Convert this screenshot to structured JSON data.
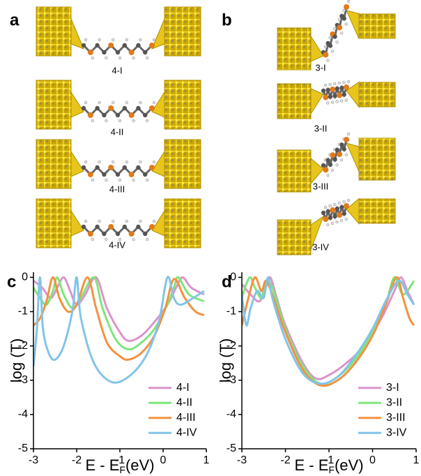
{
  "structures": [
    {
      "panel_label": "a",
      "labels": [
        "4-I",
        "4-II",
        "4-III",
        "4-IV"
      ]
    },
    {
      "panel_label": "b",
      "labels": [
        "3-I",
        "3-II",
        "3-III",
        "3-IV"
      ]
    }
  ],
  "chart_data": [
    {
      "type": "line",
      "panel_label": "c",
      "ylabel": "log (T)",
      "xlabel": {
        "main": "E - E",
        "sub": "F",
        "unit": "(eV)"
      },
      "xlim": [
        -3,
        1
      ],
      "ylim": [
        -5,
        0.15
      ],
      "xticks": [
        -3,
        -2,
        -1,
        0,
        1
      ],
      "yticks": [
        -5,
        -4,
        -3,
        -2,
        -1,
        0
      ],
      "legend": "lower right",
      "series": [
        {
          "name": "4-I",
          "color": "#dc93cc",
          "x": [
            -3,
            -2.8,
            -2.6,
            -2.45,
            -2.3,
            -2.15,
            -2.0,
            -1.8,
            -1.55,
            -1.3,
            -1.0,
            -0.8,
            -0.5,
            -0.2,
            0.1,
            0.3,
            0.45,
            0.65,
            0.95
          ],
          "values": [
            -0.1,
            -0.3,
            -0.6,
            -0.3,
            0,
            -0.4,
            -0.8,
            -0.5,
            0,
            -0.9,
            -1.6,
            -1.85,
            -1.7,
            -1.3,
            -0.8,
            -0.3,
            0,
            -0.3,
            -0.5
          ]
        },
        {
          "name": "4-II",
          "color": "#7ee67b",
          "x": [
            -3,
            -2.85,
            -2.7,
            -2.55,
            -2.45,
            -2.3,
            -2.1,
            -1.9,
            -1.6,
            -1.4,
            -1.1,
            -0.8,
            -0.5,
            -0.2,
            0.1,
            0.25,
            0.35,
            0.6,
            0.95
          ],
          "values": [
            -0.3,
            -0.6,
            -0.8,
            -0.4,
            0,
            -0.5,
            -0.9,
            -0.6,
            0,
            -0.9,
            -1.8,
            -2.1,
            -1.9,
            -1.5,
            -0.8,
            -0.3,
            0,
            -0.5,
            -0.7
          ]
        },
        {
          "name": "4-III",
          "color": "#f4913f",
          "x": [
            -3,
            -2.85,
            -2.7,
            -2.55,
            -2.4,
            -2.2,
            -2.0,
            -1.75,
            -1.55,
            -1.3,
            -1.0,
            -0.8,
            -0.5,
            -0.2,
            0.05,
            0.25,
            0.5,
            0.75,
            0.95
          ],
          "values": [
            -1.4,
            -1.2,
            -0.7,
            0,
            -0.6,
            -1.0,
            -0.8,
            0,
            -0.9,
            -1.9,
            -2.3,
            -2.4,
            -2.2,
            -1.7,
            -0.9,
            -0.05,
            -0.6,
            -1.0,
            -1.1
          ]
        },
        {
          "name": "4-IV",
          "color": "#82c4e8",
          "x": [
            -3,
            -2.92,
            -2.85,
            -2.78,
            -2.65,
            -2.5,
            -2.3,
            -2.1,
            -2.0,
            -1.9,
            -1.6,
            -1.2,
            -0.8,
            -0.4,
            -0.1,
            0.1,
            0.25,
            0.4,
            0.7,
            0.95
          ],
          "values": [
            -2.6,
            -1.5,
            0,
            -1.5,
            -2.2,
            -2.4,
            -2.0,
            -1.0,
            0,
            -1.2,
            -2.5,
            -3.05,
            -2.9,
            -2.3,
            -1.3,
            0,
            -0.6,
            -0.8,
            -0.6,
            -0.4
          ]
        }
      ]
    },
    {
      "type": "line",
      "panel_label": "d",
      "ylabel": "log (T)",
      "xlabel": {
        "main": "E - E",
        "sub": "F",
        "unit": "(eV)"
      },
      "xlim": [
        -3,
        1
      ],
      "ylim": [
        -5,
        0.15
      ],
      "xticks": [
        -3,
        -2,
        -1,
        0,
        1
      ],
      "yticks": [
        -5,
        -4,
        -3,
        -2,
        -1,
        0
      ],
      "legend": "lower right",
      "series": [
        {
          "name": "3-I",
          "color": "#dc93cc",
          "x": [
            -3,
            -2.8,
            -2.6,
            -2.45,
            -2.35,
            -2.2,
            -2.0,
            -1.6,
            -1.3,
            -1.0,
            -0.6,
            -0.2,
            0.2,
            0.5,
            0.65,
            0.8,
            0.95
          ],
          "values": [
            -0.2,
            -0.5,
            -0.7,
            -0.3,
            0,
            -0.6,
            -1.4,
            -2.5,
            -2.95,
            -2.85,
            -2.5,
            -2.0,
            -1.2,
            -0.4,
            0,
            -0.4,
            -0.8
          ]
        },
        {
          "name": "3-II",
          "color": "#7ee67b",
          "x": [
            -3,
            -2.9,
            -2.8,
            -2.7,
            -2.55,
            -2.45,
            -2.3,
            -2.0,
            -1.6,
            -1.2,
            -0.8,
            -0.4,
            0,
            0.3,
            0.5,
            0.7,
            0.95
          ],
          "values": [
            -0.6,
            -0.2,
            0,
            -0.3,
            -0.6,
            -0.1,
            -0.3,
            -1.5,
            -2.6,
            -3.1,
            -2.9,
            -2.4,
            -1.6,
            -0.8,
            0,
            -0.5,
            -0.1
          ]
        },
        {
          "name": "3-III",
          "color": "#f4913f",
          "x": [
            -3,
            -2.85,
            -2.7,
            -2.55,
            -2.45,
            -2.3,
            -2.0,
            -1.6,
            -1.2,
            -0.8,
            -0.4,
            0,
            0.3,
            0.55,
            0.7,
            0.85,
            0.95
          ],
          "values": [
            -1.4,
            -0.6,
            0,
            -0.4,
            -0.1,
            -0.5,
            -1.6,
            -2.7,
            -3.15,
            -3.0,
            -2.5,
            -1.7,
            -0.8,
            0,
            -0.6,
            -1.2,
            -1.4
          ]
        },
        {
          "name": "3-IV",
          "color": "#82c4e8",
          "x": [
            -3,
            -2.9,
            -2.8,
            -2.65,
            -2.5,
            -2.4,
            -2.3,
            -2.0,
            -1.6,
            -1.2,
            -0.8,
            -0.4,
            0,
            0.3,
            0.6,
            0.8,
            0.95
          ],
          "values": [
            -0.5,
            -1.4,
            -0.9,
            -0.4,
            -0.6,
            0,
            -0.6,
            -1.8,
            -2.8,
            -3.1,
            -2.9,
            -2.3,
            -1.5,
            -0.7,
            -0.1,
            -0.5,
            -0.8
          ]
        }
      ]
    }
  ]
}
